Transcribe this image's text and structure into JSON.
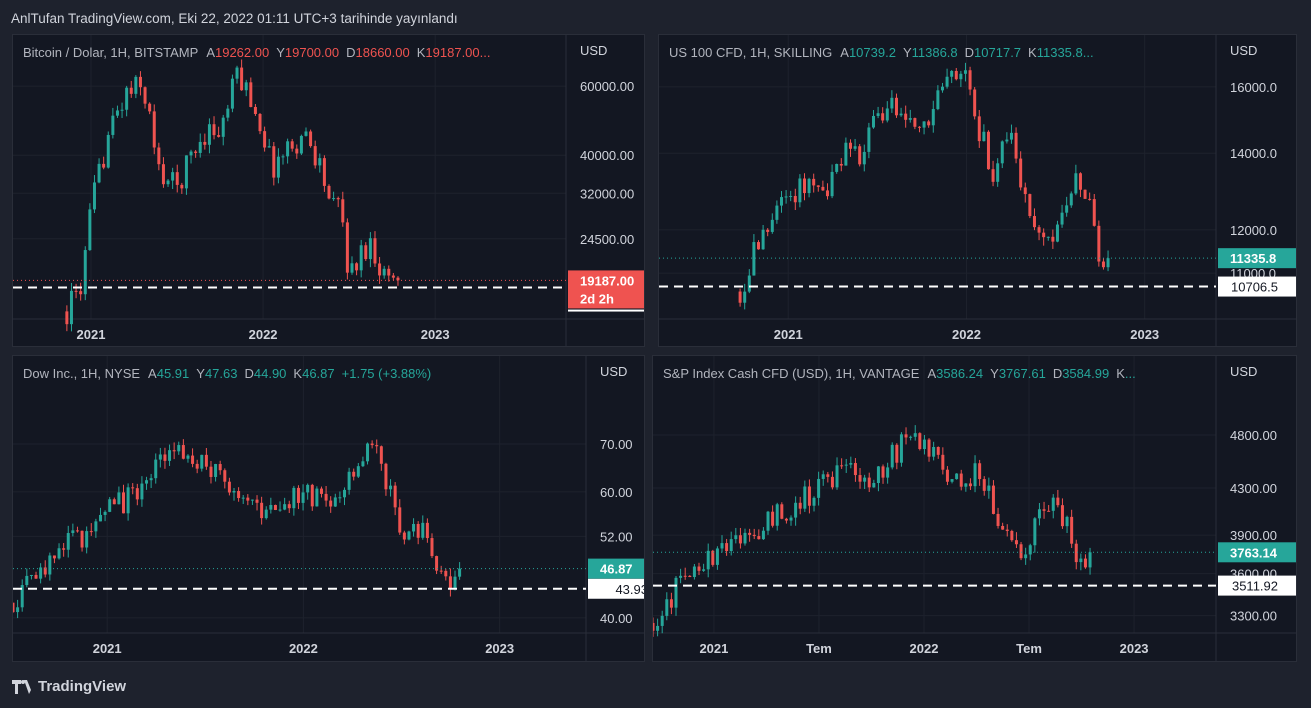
{
  "header": {
    "title": "AnlTufan TradingView.com, Eki 22, 2022 01:11 UTC+3 tarihinde yayınlandı"
  },
  "footer": {
    "logo_text": "TradingView"
  },
  "colors": {
    "up": "#26a69a",
    "down": "#ef5350",
    "grid": "#1e222d",
    "axis_text": "#d1d4dc"
  },
  "panes": [
    {
      "legend": {
        "name": "Bitcoin / Dolar, 1H, BITSTAMP",
        "color": "#ef5350",
        "fields": [
          {
            "k": "A",
            "v": "19262.00"
          },
          {
            "k": "Y",
            "v": "19700.00"
          },
          {
            "k": "D",
            "v": "18660.00"
          },
          {
            "k": "K",
            "v": "19187.00..."
          }
        ],
        "extra": ""
      },
      "currency": "USD",
      "scale": "log",
      "ylim": [
        15300,
        81000
      ],
      "xlim": [
        2020.547,
        2023.76
      ],
      "price_ticks": [
        "60000.00",
        "40000.00",
        "32000.00",
        "24500.00"
      ],
      "time_ticks": [
        {
          "t": 2021,
          "label": "2021"
        },
        {
          "t": 2022,
          "label": "2022"
        },
        {
          "t": 2023,
          "label": "2023"
        }
      ],
      "last_price": {
        "value": 19187,
        "label": "19187.00",
        "countdown": "2d 2h",
        "color": "#ef5350"
      },
      "drawn_line": {
        "value": 18400,
        "label": ""
      },
      "path": [
        [
          2020.86,
          16000
        ],
        [
          2020.95,
          19000
        ],
        [
          2021.0,
          29000
        ],
        [
          2021.1,
          45000
        ],
        [
          2021.2,
          57000
        ],
        [
          2021.28,
          60000
        ],
        [
          2021.33,
          55000
        ],
        [
          2021.38,
          37000
        ],
        [
          2021.5,
          33000
        ],
        [
          2021.58,
          40000
        ],
        [
          2021.68,
          47000
        ],
        [
          2021.75,
          45000
        ],
        [
          2021.85,
          65000
        ],
        [
          2021.92,
          57000
        ],
        [
          2022.0,
          46000
        ],
        [
          2022.05,
          37000
        ],
        [
          2022.15,
          42000
        ],
        [
          2022.25,
          45000
        ],
        [
          2022.33,
          38000
        ],
        [
          2022.4,
          29000
        ],
        [
          2022.45,
          30000
        ],
        [
          2022.5,
          19500
        ],
        [
          2022.58,
          23000
        ],
        [
          2022.62,
          24000
        ],
        [
          2022.7,
          20000
        ],
        [
          2022.8,
          19200
        ]
      ]
    },
    {
      "legend": {
        "name": "US 100 CFD, 1H, SKILLING",
        "color": "#26a69a",
        "fields": [
          {
            "k": "A",
            "v": "10739.2"
          },
          {
            "k": "Y",
            "v": "11386.8"
          },
          {
            "k": "D",
            "v": "10717.7"
          },
          {
            "k": "K",
            "v": "11335.8..."
          }
        ],
        "extra": ""
      },
      "currency": "USD",
      "scale": "log",
      "ylim": [
        10030,
        17760
      ],
      "xlim": [
        2020.275,
        2023.4
      ],
      "price_ticks": [
        "16000.0",
        "14000.0",
        "12000.0",
        "11000.0"
      ],
      "time_ticks": [
        {
          "t": 2021,
          "label": "2021"
        },
        {
          "t": 2022,
          "label": "2022"
        },
        {
          "t": 2023,
          "label": "2023"
        }
      ],
      "last_price": {
        "value": 11335.8,
        "label": "11335.8",
        "countdown": "",
        "color": "#26a69a"
      },
      "drawn_line": {
        "value": 10706.5,
        "label": "10706.5"
      },
      "path": [
        [
          2020.73,
          10600
        ],
        [
          2020.85,
          11900
        ],
        [
          2021.0,
          12800
        ],
        [
          2021.15,
          13400
        ],
        [
          2021.2,
          12800
        ],
        [
          2021.3,
          14000
        ],
        [
          2021.4,
          13800
        ],
        [
          2021.5,
          15000
        ],
        [
          2021.6,
          15400
        ],
        [
          2021.7,
          15000
        ],
        [
          2021.75,
          14600
        ],
        [
          2021.9,
          16500
        ],
        [
          2022.0,
          16300
        ],
        [
          2022.05,
          15000
        ],
        [
          2022.15,
          13500
        ],
        [
          2022.25,
          14500
        ],
        [
          2022.35,
          12500
        ],
        [
          2022.45,
          11500
        ],
        [
          2022.58,
          12900
        ],
        [
          2022.62,
          13600
        ],
        [
          2022.7,
          12400
        ],
        [
          2022.77,
          10900
        ],
        [
          2022.8,
          11335
        ]
      ]
    },
    {
      "legend": {
        "name": "Dow Inc., 1H, NYSE",
        "color": "#26a69a",
        "fields": [
          {
            "k": "A",
            "v": "45.91"
          },
          {
            "k": "Y",
            "v": "47.63"
          },
          {
            "k": "D",
            "v": "44.90"
          },
          {
            "k": "K",
            "v": "46.87"
          }
        ],
        "extra": "+1.75 (+3.88%)"
      },
      "currency": "USD",
      "scale": "log",
      "ylim": [
        38.1,
        92.9
      ],
      "xlim": [
        2020.52,
        2023.44
      ],
      "price_ticks": [
        "70.00",
        "60.00",
        "52.00",
        "40.00"
      ],
      "time_ticks": [
        {
          "t": 2021,
          "label": "2021"
        },
        {
          "t": 2022,
          "label": "2022"
        },
        {
          "t": 2023,
          "label": "2023"
        }
      ],
      "last_price": {
        "value": 46.87,
        "label": "46.87",
        "countdown": "",
        "color": "#26a69a"
      },
      "drawn_line": {
        "value": 43.93,
        "label": "43.93"
      },
      "path": [
        [
          2020.52,
          42
        ],
        [
          2020.6,
          45
        ],
        [
          2020.75,
          50
        ],
        [
          2020.9,
          52
        ],
        [
          2021.0,
          56
        ],
        [
          2021.15,
          60
        ],
        [
          2021.3,
          67
        ],
        [
          2021.35,
          70
        ],
        [
          2021.45,
          66
        ],
        [
          2021.6,
          62
        ],
        [
          2021.8,
          57
        ],
        [
          2021.9,
          57
        ],
        [
          2022.0,
          60
        ],
        [
          2022.15,
          58
        ],
        [
          2022.3,
          68
        ],
        [
          2022.35,
          70
        ],
        [
          2022.42,
          62
        ],
        [
          2022.5,
          52
        ],
        [
          2022.6,
          53
        ],
        [
          2022.68,
          48
        ],
        [
          2022.75,
          44
        ],
        [
          2022.8,
          46.87
        ]
      ]
    },
    {
      "legend": {
        "name": "S&P Index Cash CFD (USD), 1H, VANTAGE",
        "color": "#26a69a",
        "fields": [
          {
            "k": "A",
            "v": "3586.24"
          },
          {
            "k": "Y",
            "v": "3767.61"
          },
          {
            "k": "D",
            "v": "3584.99"
          },
          {
            "k": "K",
            "v": "..."
          }
        ],
        "extra": ""
      },
      "currency": "USD",
      "scale": "log",
      "ylim": [
        3183,
        5655
      ],
      "xlim": [
        2020.71,
        2023.39
      ],
      "price_ticks": [
        "4800.00",
        "4300.00",
        "3900.00",
        "3600.00",
        "3300.00"
      ],
      "time_ticks": [
        {
          "t": 2021,
          "label": "2021"
        },
        {
          "t": 2021.5,
          "label": "Tem"
        },
        {
          "t": 2022,
          "label": "2022"
        },
        {
          "t": 2022.5,
          "label": "Tem"
        },
        {
          "t": 2023,
          "label": "2023"
        }
      ],
      "last_price": {
        "value": 3763.14,
        "label": "3763.14",
        "countdown": "",
        "color": "#26a69a"
      },
      "drawn_line": {
        "value": 3511.92,
        "label": "3511.92"
      },
      "path": [
        [
          2020.71,
          3250
        ],
        [
          2020.85,
          3550
        ],
        [
          2021.0,
          3750
        ],
        [
          2021.2,
          3950
        ],
        [
          2021.5,
          4300
        ],
        [
          2021.6,
          4450
        ],
        [
          2021.75,
          4400
        ],
        [
          2021.9,
          4700
        ],
        [
          2022.0,
          4750
        ],
        [
          2022.1,
          4400
        ],
        [
          2022.2,
          4300
        ],
        [
          2022.25,
          4550
        ],
        [
          2022.35,
          4050
        ],
        [
          2022.45,
          3700
        ],
        [
          2022.55,
          4100
        ],
        [
          2022.62,
          4250
        ],
        [
          2022.7,
          3900
        ],
        [
          2022.76,
          3580
        ],
        [
          2022.8,
          3763
        ]
      ]
    }
  ]
}
